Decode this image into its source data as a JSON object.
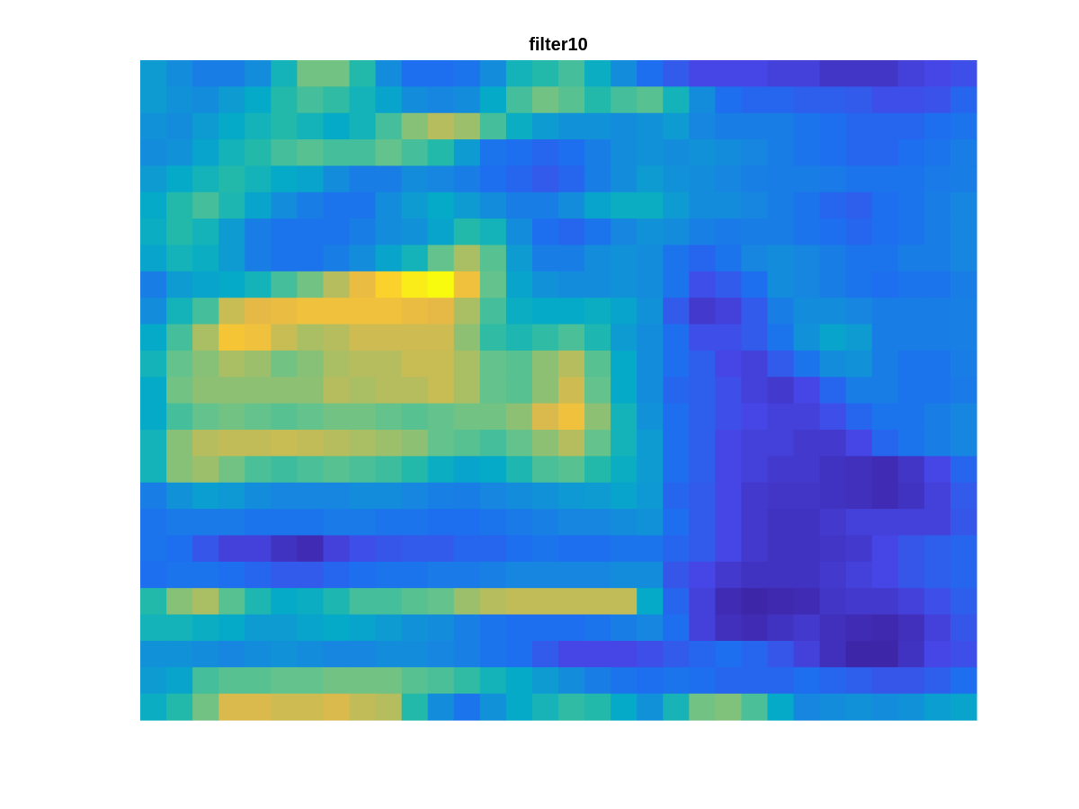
{
  "chart_data": {
    "type": "heatmap",
    "title": "filter10",
    "xlabel": "",
    "ylabel": "",
    "colormap": "parula",
    "clim": [
      0,
      1
    ],
    "grid": false,
    "axis_visible": false,
    "rows": 25,
    "cols": 32,
    "values": [
      [
        0.35,
        0.3,
        0.25,
        0.25,
        0.3,
        0.45,
        0.62,
        0.62,
        0.5,
        0.3,
        0.2,
        0.2,
        0.22,
        0.3,
        0.45,
        0.5,
        0.55,
        0.42,
        0.3,
        0.2,
        0.15,
        0.1,
        0.1,
        0.1,
        0.08,
        0.08,
        0.05,
        0.05,
        0.05,
        0.08,
        0.1,
        0.12
      ],
      [
        0.35,
        0.32,
        0.3,
        0.35,
        0.4,
        0.5,
        0.55,
        0.52,
        0.45,
        0.38,
        0.3,
        0.28,
        0.3,
        0.4,
        0.55,
        0.62,
        0.58,
        0.5,
        0.55,
        0.58,
        0.45,
        0.3,
        0.2,
        0.18,
        0.18,
        0.16,
        0.16,
        0.15,
        0.12,
        0.12,
        0.13,
        0.18
      ],
      [
        0.32,
        0.3,
        0.35,
        0.4,
        0.45,
        0.5,
        0.45,
        0.4,
        0.45,
        0.55,
        0.65,
        0.72,
        0.68,
        0.55,
        0.42,
        0.35,
        0.32,
        0.32,
        0.3,
        0.32,
        0.35,
        0.28,
        0.25,
        0.25,
        0.25,
        0.22,
        0.2,
        0.18,
        0.18,
        0.18,
        0.2,
        0.22
      ],
      [
        0.3,
        0.32,
        0.38,
        0.45,
        0.5,
        0.55,
        0.58,
        0.55,
        0.55,
        0.6,
        0.55,
        0.5,
        0.35,
        0.22,
        0.2,
        0.18,
        0.2,
        0.25,
        0.3,
        0.32,
        0.3,
        0.32,
        0.3,
        0.28,
        0.25,
        0.22,
        0.2,
        0.18,
        0.18,
        0.2,
        0.22,
        0.25
      ],
      [
        0.35,
        0.4,
        0.45,
        0.5,
        0.45,
        0.4,
        0.38,
        0.3,
        0.25,
        0.25,
        0.3,
        0.28,
        0.25,
        0.2,
        0.18,
        0.15,
        0.18,
        0.25,
        0.3,
        0.35,
        0.32,
        0.3,
        0.28,
        0.26,
        0.25,
        0.25,
        0.24,
        0.22,
        0.22,
        0.22,
        0.24,
        0.25
      ],
      [
        0.4,
        0.5,
        0.55,
        0.48,
        0.38,
        0.3,
        0.25,
        0.22,
        0.22,
        0.3,
        0.35,
        0.4,
        0.35,
        0.3,
        0.25,
        0.25,
        0.3,
        0.38,
        0.42,
        0.42,
        0.35,
        0.3,
        0.3,
        0.28,
        0.25,
        0.22,
        0.18,
        0.16,
        0.2,
        0.22,
        0.25,
        0.28
      ],
      [
        0.42,
        0.5,
        0.45,
        0.35,
        0.25,
        0.22,
        0.22,
        0.22,
        0.25,
        0.3,
        0.32,
        0.38,
        0.5,
        0.45,
        0.3,
        0.2,
        0.18,
        0.22,
        0.28,
        0.32,
        0.3,
        0.26,
        0.24,
        0.25,
        0.25,
        0.22,
        0.2,
        0.18,
        0.2,
        0.22,
        0.25,
        0.28
      ],
      [
        0.38,
        0.45,
        0.42,
        0.35,
        0.25,
        0.22,
        0.22,
        0.25,
        0.3,
        0.38,
        0.45,
        0.6,
        0.7,
        0.58,
        0.35,
        0.25,
        0.25,
        0.3,
        0.32,
        0.3,
        0.22,
        0.18,
        0.22,
        0.28,
        0.3,
        0.28,
        0.25,
        0.22,
        0.22,
        0.25,
        0.25,
        0.28
      ],
      [
        0.25,
        0.35,
        0.38,
        0.4,
        0.45,
        0.55,
        0.62,
        0.72,
        0.82,
        0.92,
        0.97,
        1.0,
        0.85,
        0.6,
        0.38,
        0.32,
        0.3,
        0.3,
        0.32,
        0.3,
        0.22,
        0.12,
        0.15,
        0.2,
        0.3,
        0.28,
        0.25,
        0.22,
        0.2,
        0.22,
        0.22,
        0.25
      ],
      [
        0.3,
        0.45,
        0.55,
        0.75,
        0.8,
        0.82,
        0.85,
        0.85,
        0.85,
        0.85,
        0.82,
        0.8,
        0.7,
        0.55,
        0.42,
        0.4,
        0.4,
        0.42,
        0.38,
        0.32,
        0.15,
        0.06,
        0.08,
        0.15,
        0.25,
        0.3,
        0.3,
        0.28,
        0.25,
        0.25,
        0.25,
        0.26
      ],
      [
        0.4,
        0.55,
        0.7,
        0.88,
        0.85,
        0.75,
        0.7,
        0.72,
        0.76,
        0.76,
        0.76,
        0.76,
        0.66,
        0.52,
        0.48,
        0.52,
        0.56,
        0.48,
        0.35,
        0.3,
        0.2,
        0.12,
        0.12,
        0.15,
        0.22,
        0.32,
        0.38,
        0.35,
        0.25,
        0.25,
        0.25,
        0.26
      ],
      [
        0.45,
        0.6,
        0.65,
        0.7,
        0.68,
        0.62,
        0.65,
        0.7,
        0.72,
        0.72,
        0.75,
        0.75,
        0.7,
        0.6,
        0.58,
        0.66,
        0.72,
        0.58,
        0.4,
        0.3,
        0.2,
        0.16,
        0.1,
        0.08,
        0.15,
        0.22,
        0.3,
        0.32,
        0.25,
        0.22,
        0.22,
        0.25
      ],
      [
        0.4,
        0.62,
        0.66,
        0.66,
        0.66,
        0.66,
        0.66,
        0.72,
        0.7,
        0.72,
        0.72,
        0.75,
        0.7,
        0.6,
        0.58,
        0.66,
        0.76,
        0.6,
        0.4,
        0.3,
        0.18,
        0.16,
        0.12,
        0.08,
        0.06,
        0.1,
        0.18,
        0.25,
        0.25,
        0.22,
        0.22,
        0.24
      ],
      [
        0.4,
        0.55,
        0.6,
        0.62,
        0.6,
        0.58,
        0.6,
        0.62,
        0.62,
        0.6,
        0.58,
        0.6,
        0.62,
        0.62,
        0.66,
        0.78,
        0.85,
        0.66,
        0.45,
        0.32,
        0.2,
        0.16,
        0.12,
        0.1,
        0.08,
        0.08,
        0.12,
        0.18,
        0.22,
        0.22,
        0.25,
        0.28
      ],
      [
        0.45,
        0.65,
        0.72,
        0.74,
        0.74,
        0.75,
        0.74,
        0.72,
        0.7,
        0.68,
        0.66,
        0.6,
        0.58,
        0.55,
        0.6,
        0.66,
        0.72,
        0.6,
        0.45,
        0.35,
        0.2,
        0.16,
        0.1,
        0.08,
        0.08,
        0.06,
        0.06,
        0.1,
        0.18,
        0.22,
        0.25,
        0.28
      ],
      [
        0.45,
        0.65,
        0.68,
        0.62,
        0.56,
        0.54,
        0.56,
        0.58,
        0.56,
        0.54,
        0.5,
        0.42,
        0.38,
        0.4,
        0.48,
        0.56,
        0.58,
        0.5,
        0.42,
        0.35,
        0.2,
        0.16,
        0.1,
        0.08,
        0.06,
        0.06,
        0.04,
        0.03,
        0.02,
        0.05,
        0.1,
        0.18
      ],
      [
        0.25,
        0.32,
        0.36,
        0.34,
        0.3,
        0.28,
        0.28,
        0.28,
        0.3,
        0.3,
        0.28,
        0.26,
        0.25,
        0.28,
        0.3,
        0.32,
        0.34,
        0.35,
        0.38,
        0.34,
        0.18,
        0.15,
        0.1,
        0.06,
        0.05,
        0.05,
        0.04,
        0.03,
        0.02,
        0.04,
        0.08,
        0.15
      ],
      [
        0.22,
        0.24,
        0.24,
        0.24,
        0.22,
        0.22,
        0.22,
        0.24,
        0.24,
        0.22,
        0.22,
        0.2,
        0.2,
        0.22,
        0.24,
        0.26,
        0.28,
        0.28,
        0.3,
        0.32,
        0.2,
        0.15,
        0.1,
        0.06,
        0.04,
        0.04,
        0.06,
        0.08,
        0.08,
        0.08,
        0.08,
        0.14
      ],
      [
        0.22,
        0.2,
        0.14,
        0.08,
        0.08,
        0.04,
        0.02,
        0.08,
        0.12,
        0.14,
        0.15,
        0.15,
        0.18,
        0.18,
        0.2,
        0.22,
        0.2,
        0.2,
        0.22,
        0.22,
        0.18,
        0.15,
        0.1,
        0.06,
        0.04,
        0.04,
        0.05,
        0.06,
        0.1,
        0.14,
        0.16,
        0.18
      ],
      [
        0.2,
        0.22,
        0.22,
        0.2,
        0.18,
        0.15,
        0.15,
        0.18,
        0.2,
        0.22,
        0.22,
        0.24,
        0.24,
        0.26,
        0.28,
        0.28,
        0.28,
        0.28,
        0.3,
        0.3,
        0.14,
        0.1,
        0.06,
        0.04,
        0.04,
        0.04,
        0.06,
        0.08,
        0.1,
        0.14,
        0.16,
        0.18
      ],
      [
        0.5,
        0.65,
        0.7,
        0.58,
        0.48,
        0.4,
        0.42,
        0.48,
        0.55,
        0.55,
        0.58,
        0.6,
        0.68,
        0.72,
        0.74,
        0.74,
        0.74,
        0.74,
        0.74,
        0.4,
        0.18,
        0.08,
        0.02,
        0.0,
        0.01,
        0.02,
        0.05,
        0.06,
        0.06,
        0.08,
        0.12,
        0.16
      ],
      [
        0.45,
        0.45,
        0.42,
        0.4,
        0.35,
        0.35,
        0.38,
        0.4,
        0.38,
        0.35,
        0.32,
        0.3,
        0.26,
        0.22,
        0.2,
        0.2,
        0.2,
        0.22,
        0.25,
        0.28,
        0.2,
        0.08,
        0.03,
        0.02,
        0.04,
        0.06,
        0.03,
        0.02,
        0.01,
        0.03,
        0.08,
        0.14
      ],
      [
        0.32,
        0.32,
        0.3,
        0.28,
        0.3,
        0.32,
        0.3,
        0.28,
        0.28,
        0.3,
        0.3,
        0.28,
        0.26,
        0.22,
        0.2,
        0.15,
        0.1,
        0.1,
        0.1,
        0.12,
        0.15,
        0.18,
        0.2,
        0.18,
        0.14,
        0.08,
        0.03,
        0.0,
        0.0,
        0.04,
        0.1,
        0.12
      ],
      [
        0.35,
        0.38,
        0.55,
        0.58,
        0.58,
        0.6,
        0.6,
        0.62,
        0.62,
        0.62,
        0.58,
        0.56,
        0.52,
        0.45,
        0.4,
        0.35,
        0.3,
        0.25,
        0.22,
        0.2,
        0.22,
        0.2,
        0.18,
        0.18,
        0.18,
        0.2,
        0.18,
        0.16,
        0.14,
        0.14,
        0.16,
        0.2
      ],
      [
        0.42,
        0.5,
        0.62,
        0.78,
        0.78,
        0.76,
        0.76,
        0.78,
        0.74,
        0.72,
        0.5,
        0.3,
        0.22,
        0.32,
        0.4,
        0.46,
        0.52,
        0.5,
        0.4,
        0.32,
        0.46,
        0.62,
        0.64,
        0.56,
        0.4,
        0.28,
        0.3,
        0.32,
        0.3,
        0.32,
        0.36,
        0.38
      ]
    ]
  }
}
